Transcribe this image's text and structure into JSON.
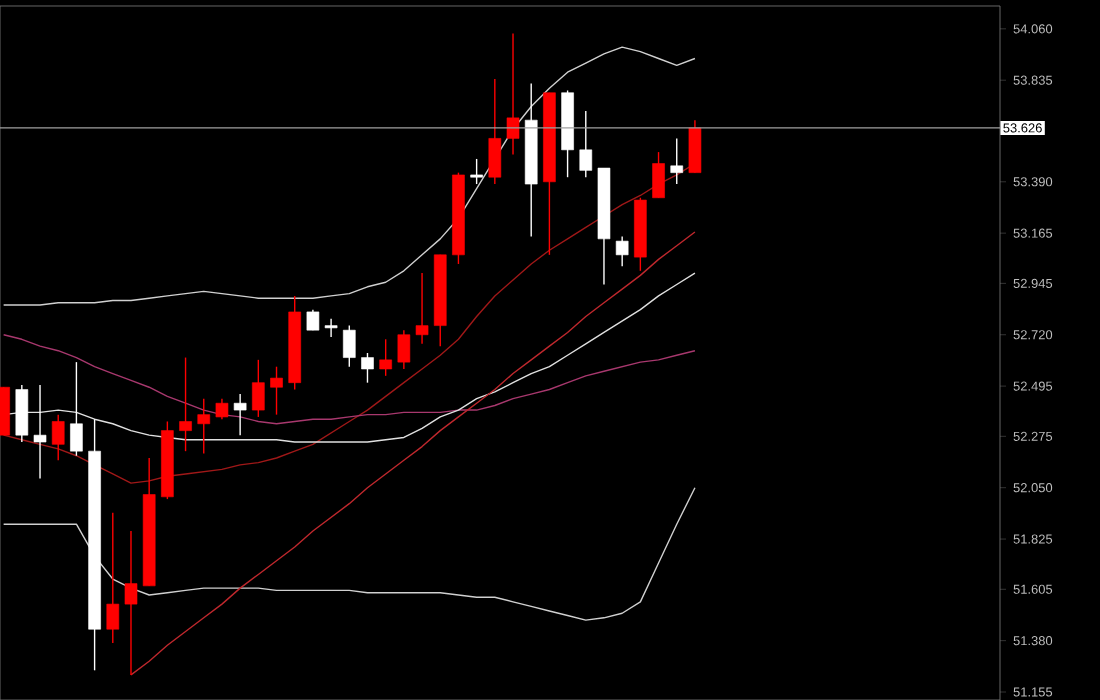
{
  "chart_data": {
    "type": "candlestick",
    "categories": [
      null,
      null,
      null,
      null,
      null,
      null,
      null,
      null,
      null,
      null,
      null,
      null,
      null,
      null,
      null,
      null,
      null,
      null,
      null,
      null,
      null,
      null,
      null,
      null,
      null,
      null,
      null,
      null,
      null,
      null,
      null,
      null,
      null,
      null,
      null,
      null,
      null,
      null,
      null
    ],
    "ohlc": [
      [
        52.28,
        52.49,
        52.28,
        52.49
      ],
      [
        52.48,
        52.5,
        52.25,
        52.28
      ],
      [
        52.28,
        52.5,
        52.09,
        52.25
      ],
      [
        52.24,
        52.37,
        52.17,
        52.34
      ],
      [
        52.33,
        52.6,
        52.19,
        52.21
      ],
      [
        52.21,
        52.35,
        51.25,
        51.43
      ],
      [
        51.43,
        51.94,
        51.37,
        51.54
      ],
      [
        51.54,
        51.86,
        51.23,
        51.63
      ],
      [
        51.62,
        52.18,
        51.62,
        52.02
      ],
      [
        52.01,
        52.34,
        52.0,
        52.3
      ],
      [
        52.3,
        52.62,
        52.21,
        52.34
      ],
      [
        52.33,
        52.44,
        52.2,
        52.37
      ],
      [
        52.36,
        52.44,
        52.35,
        52.42
      ],
      [
        52.42,
        52.46,
        52.28,
        52.39
      ],
      [
        52.39,
        52.61,
        52.36,
        52.51
      ],
      [
        52.49,
        52.58,
        52.37,
        52.53
      ],
      [
        52.51,
        52.89,
        52.48,
        52.82
      ],
      [
        52.82,
        52.83,
        52.74,
        52.74
      ],
      [
        52.76,
        52.79,
        52.71,
        52.75
      ],
      [
        52.74,
        52.76,
        52.58,
        52.62
      ],
      [
        52.62,
        52.64,
        52.51,
        52.57
      ],
      [
        52.57,
        52.7,
        52.54,
        52.61
      ],
      [
        52.6,
        52.74,
        52.57,
        52.72
      ],
      [
        52.72,
        52.99,
        52.68,
        52.76
      ],
      [
        52.76,
        53.07,
        52.67,
        53.07
      ],
      [
        53.07,
        53.43,
        53.03,
        53.42
      ],
      [
        53.42,
        53.49,
        53.38,
        53.41
      ],
      [
        53.41,
        53.84,
        53.38,
        53.58
      ],
      [
        53.58,
        54.04,
        53.51,
        53.67
      ],
      [
        53.66,
        53.82,
        53.15,
        53.38
      ],
      [
        53.39,
        53.78,
        53.07,
        53.78
      ],
      [
        53.78,
        53.79,
        53.41,
        53.53
      ],
      [
        53.53,
        53.7,
        53.41,
        53.44
      ],
      [
        53.45,
        53.45,
        52.94,
        53.14
      ],
      [
        53.13,
        53.15,
        53.02,
        53.07
      ],
      [
        53.06,
        53.32,
        53.0,
        53.31
      ],
      [
        53.32,
        53.52,
        53.32,
        53.47
      ],
      [
        53.46,
        53.58,
        53.38,
        53.43
      ],
      [
        53.43,
        53.66,
        53.43,
        53.626
      ]
    ],
    "colors": [
      "#ff0000",
      "#ffffff",
      "#ffffff",
      "#ff0000",
      "#ffffff",
      "#ffffff",
      "#ff0000",
      "#ff0000",
      "#ff0000",
      "#ff0000",
      "#ff0000",
      "#ff0000",
      "#ff0000",
      "#ffffff",
      "#ff0000",
      "#ff0000",
      "#ff0000",
      "#ffffff",
      "#ffffff",
      "#ffffff",
      "#ffffff",
      "#ff0000",
      "#ff0000",
      "#ff0000",
      "#ff0000",
      "#ff0000",
      "#ffffff",
      "#ff0000",
      "#ff0000",
      "#ffffff",
      "#ff0000",
      "#ffffff",
      "#ffffff",
      "#ffffff",
      "#ffffff",
      "#ff0000",
      "#ff0000",
      "#ffffff",
      "#ff0000"
    ],
    "series": [
      {
        "type": "line",
        "color": "#d0d0d0",
        "values": [
          52.85,
          52.85,
          52.85,
          52.86,
          52.86,
          52.86,
          52.87,
          52.87,
          52.88,
          52.89,
          52.9,
          52.91,
          52.9,
          52.89,
          52.88,
          52.88,
          52.88,
          52.88,
          52.89,
          52.9,
          52.93,
          52.95,
          53.0,
          53.07,
          53.14,
          53.23,
          53.36,
          53.49,
          53.62,
          53.72,
          53.8,
          53.87,
          53.91,
          53.95,
          53.98,
          53.96,
          53.93,
          53.9,
          53.93
        ]
      },
      {
        "type": "line",
        "color": "#d0d0d0",
        "values": [
          51.89,
          51.89,
          51.89,
          51.89,
          51.89,
          51.75,
          51.65,
          51.61,
          51.58,
          51.59,
          51.6,
          51.61,
          51.61,
          51.61,
          51.61,
          51.6,
          51.6,
          51.6,
          51.6,
          51.6,
          51.59,
          51.59,
          51.59,
          51.59,
          51.59,
          51.58,
          51.57,
          51.57,
          51.55,
          51.53,
          51.51,
          51.49,
          51.47,
          51.48,
          51.5,
          51.55,
          51.72,
          51.89,
          52.05
        ]
      },
      {
        "type": "line",
        "color": "#a01818",
        "values": [
          52.28,
          52.26,
          52.24,
          52.22,
          52.19,
          52.15,
          52.11,
          52.07,
          52.08,
          52.1,
          52.11,
          52.12,
          52.13,
          52.15,
          52.16,
          52.18,
          52.21,
          52.24,
          52.29,
          52.34,
          52.39,
          52.45,
          52.51,
          52.57,
          52.63,
          52.7,
          52.8,
          52.89,
          52.96,
          53.03,
          53.09,
          53.14,
          53.19,
          53.24,
          53.29,
          53.33,
          53.38,
          53.42,
          53.47
        ]
      },
      {
        "type": "line",
        "color": "#a8386e",
        "values": [
          52.72,
          52.7,
          52.67,
          52.65,
          52.62,
          52.58,
          52.55,
          52.52,
          52.49,
          52.45,
          52.42,
          52.39,
          52.37,
          52.36,
          52.34,
          52.33,
          52.34,
          52.35,
          52.35,
          52.36,
          52.37,
          52.37,
          52.38,
          52.38,
          52.38,
          52.39,
          52.39,
          52.41,
          52.44,
          52.46,
          52.48,
          52.51,
          52.54,
          52.56,
          52.58,
          52.6,
          52.61,
          52.63,
          52.65
        ]
      },
      {
        "type": "line",
        "color": "#e0e0e0",
        "values": [
          52.37,
          52.38,
          52.38,
          52.39,
          52.38,
          52.35,
          52.33,
          52.3,
          52.28,
          52.27,
          52.26,
          52.26,
          52.26,
          52.26,
          52.26,
          52.26,
          52.25,
          52.25,
          52.25,
          52.25,
          52.25,
          52.26,
          52.27,
          52.31,
          52.36,
          52.39,
          52.44,
          52.47,
          52.51,
          52.55,
          52.58,
          52.63,
          52.68,
          52.73,
          52.78,
          52.83,
          52.89,
          52.94,
          52.99
        ]
      },
      {
        "type": "line",
        "color": "#c0282d",
        "values": [
          null,
          null,
          null,
          null,
          null,
          null,
          null,
          51.23,
          51.29,
          51.36,
          51.42,
          51.48,
          51.54,
          51.61,
          51.67,
          51.73,
          51.79,
          51.86,
          51.92,
          51.98,
          52.05,
          52.11,
          52.17,
          52.23,
          52.3,
          52.36,
          52.42,
          52.48,
          52.55,
          52.61,
          52.67,
          52.73,
          52.8,
          52.86,
          52.92,
          52.98,
          53.05,
          53.11,
          53.17
        ]
      }
    ],
    "ref_lines": [
      {
        "axis": "y",
        "value": 53.626,
        "label": "53.626",
        "color": "#a0a0a0"
      }
    ],
    "ylim": [
      51.12,
      54.16
    ],
    "yticks": [
      {
        "value": 51.155,
        "label": "51.155"
      },
      {
        "value": 51.38,
        "label": "51.380"
      },
      {
        "value": 51.605,
        "label": "51.605"
      },
      {
        "value": 51.825,
        "label": "51.825"
      },
      {
        "value": 52.05,
        "label": "52.050"
      },
      {
        "value": 52.275,
        "label": "52.275"
      },
      {
        "value": 52.495,
        "label": "52.495"
      },
      {
        "value": 52.72,
        "label": "52.720"
      },
      {
        "value": 52.945,
        "label": "52.945"
      },
      {
        "value": 53.165,
        "label": "53.165"
      },
      {
        "value": 53.39,
        "label": "53.390"
      },
      {
        "value": 53.835,
        "label": "53.835"
      },
      {
        "value": 54.06,
        "label": "54.060"
      }
    ],
    "tick_labels": "y"
  }
}
